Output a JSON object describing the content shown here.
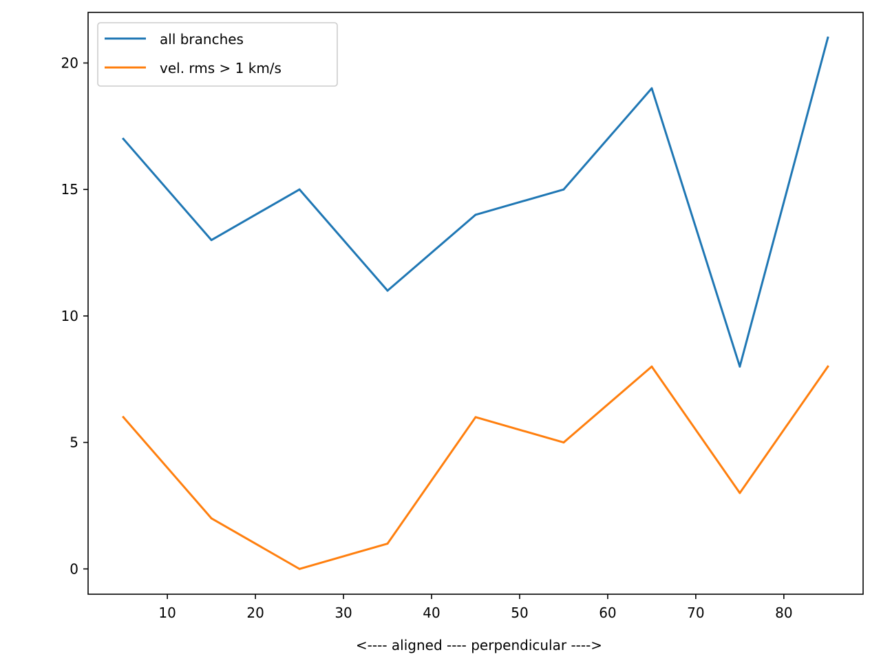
{
  "chart_data": {
    "type": "line",
    "title": "",
    "xlabel": "<---- aligned ---- perpendicular ---->",
    "ylabel": "",
    "x": [
      5,
      15,
      25,
      35,
      45,
      55,
      65,
      75,
      85
    ],
    "series": [
      {
        "name": "all branches",
        "color": "#1f77b4",
        "values": [
          17,
          13,
          15,
          11,
          14,
          15,
          19,
          8,
          21
        ]
      },
      {
        "name": "vel. rms > 1 km/s",
        "color": "#ff7f0e",
        "values": [
          6,
          2,
          0,
          1,
          6,
          5,
          8,
          3,
          8
        ]
      }
    ],
    "xticks": [
      10,
      20,
      30,
      40,
      50,
      60,
      70,
      80
    ],
    "yticks": [
      0,
      5,
      10,
      15,
      20
    ],
    "xlim": [
      1,
      89
    ],
    "ylim": [
      -1,
      22
    ],
    "grid": false,
    "legend_position": "top-left"
  }
}
